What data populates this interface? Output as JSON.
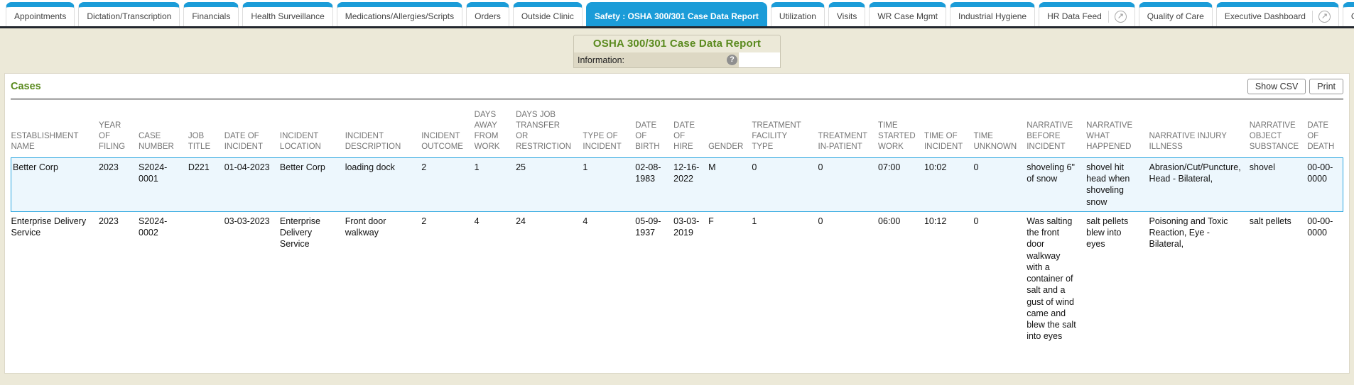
{
  "colors": {
    "tab_blue": "#1b9cd8",
    "page_beige": "#ece9d8",
    "accent_green": "#5a8a1e",
    "selected_row_border": "#2ba6df",
    "selected_row_bg": "#edf7fd"
  },
  "tabs": [
    {
      "label": "Appointments",
      "active": false,
      "dropdown": true,
      "external": false
    },
    {
      "label": "Dictation/Transcription",
      "active": false,
      "dropdown": true,
      "external": false
    },
    {
      "label": "Financials",
      "active": false,
      "dropdown": true,
      "external": false
    },
    {
      "label": "Health Surveillance",
      "active": false,
      "dropdown": true,
      "external": false
    },
    {
      "label": "Medications/Allergies/Scripts",
      "active": false,
      "dropdown": true,
      "external": false
    },
    {
      "label": "Orders",
      "active": false,
      "dropdown": true,
      "external": false
    },
    {
      "label": "Outside Clinic",
      "active": false,
      "dropdown": true,
      "external": false
    },
    {
      "label": "Safety : OSHA 300/301 Case Data Report",
      "active": true,
      "dropdown": true,
      "external": false
    },
    {
      "label": "Utilization",
      "active": false,
      "dropdown": true,
      "external": false
    },
    {
      "label": "Visits",
      "active": false,
      "dropdown": true,
      "external": false
    },
    {
      "label": "WR Case Mgmt",
      "active": false,
      "dropdown": true,
      "external": false
    },
    {
      "label": "Industrial Hygiene",
      "active": false,
      "dropdown": true,
      "external": false
    },
    {
      "label": "HR Data Feed",
      "active": false,
      "dropdown": false,
      "external": true
    },
    {
      "label": "Quality of Care",
      "active": false,
      "dropdown": true,
      "external": false
    },
    {
      "label": "Executive Dashboard",
      "active": false,
      "dropdown": false,
      "external": true
    },
    {
      "label": "C",
      "active": false,
      "dropdown": false,
      "external": false
    }
  ],
  "header": {
    "title": "OSHA 300/301 Case Data Report",
    "information_label": "Information:",
    "help_icon": "question-mark-icon"
  },
  "cases": {
    "heading": "Cases",
    "show_csv_label": "Show CSV",
    "print_label": "Print"
  },
  "table": {
    "columns": [
      "ESTABLISHMENT NAME",
      "YEAR OF FILING",
      "CASE NUMBER",
      "JOB TITLE",
      "DATE OF INCIDENT",
      "INCIDENT LOCATION",
      "INCIDENT DESCRIPTION",
      "INCIDENT OUTCOME",
      "DAYS AWAY FROM WORK",
      "DAYS JOB TRANSFER OR RESTRICTION",
      "TYPE OF INCIDENT",
      "DATE OF BIRTH",
      "DATE OF HIRE",
      "GENDER",
      "TREATMENT FACILITY TYPE",
      "TREATMENT IN-PATIENT",
      "TIME STARTED WORK",
      "TIME OF INCIDENT",
      "TIME UNKNOWN",
      "NARRATIVE BEFORE INCIDENT",
      "NARRATIVE WHAT HAPPENED",
      "NARRATIVE INJURY ILLNESS",
      "NARRATIVE OBJECT SUBSTANCE",
      "DATE OF DEATH"
    ],
    "rows": [
      {
        "selected": true,
        "cells": [
          "Better Corp",
          "2023",
          "S2024-0001",
          "D221",
          "01-04-2023",
          "Better Corp",
          "loading dock",
          "2",
          "1",
          "25",
          "1",
          "02-08-1983",
          "12-16-2022",
          "M",
          "0",
          "0",
          "07:00",
          "10:02",
          "0",
          "shoveling 6\" of snow",
          "shovel hit head when shoveling snow",
          "Abrasion/Cut/Puncture, Head - Bilateral,",
          "shovel",
          "00-00-0000"
        ]
      },
      {
        "selected": false,
        "cells": [
          "Enterprise Delivery Service",
          "2023",
          "S2024-0002",
          "",
          "03-03-2023",
          "Enterprise Delivery Service",
          "Front door walkway",
          "2",
          "4",
          "24",
          "4",
          "05-09-1937",
          "03-03-2019",
          "F",
          "1",
          "0",
          "06:00",
          "10:12",
          "0",
          "Was salting the front door walkway with a container of salt and a gust of wind came and blew the salt into eyes",
          "salt pellets blew into eyes",
          "Poisoning and Toxic Reaction, Eye - Bilateral,",
          "salt pellets",
          "00-00-0000"
        ]
      }
    ]
  }
}
